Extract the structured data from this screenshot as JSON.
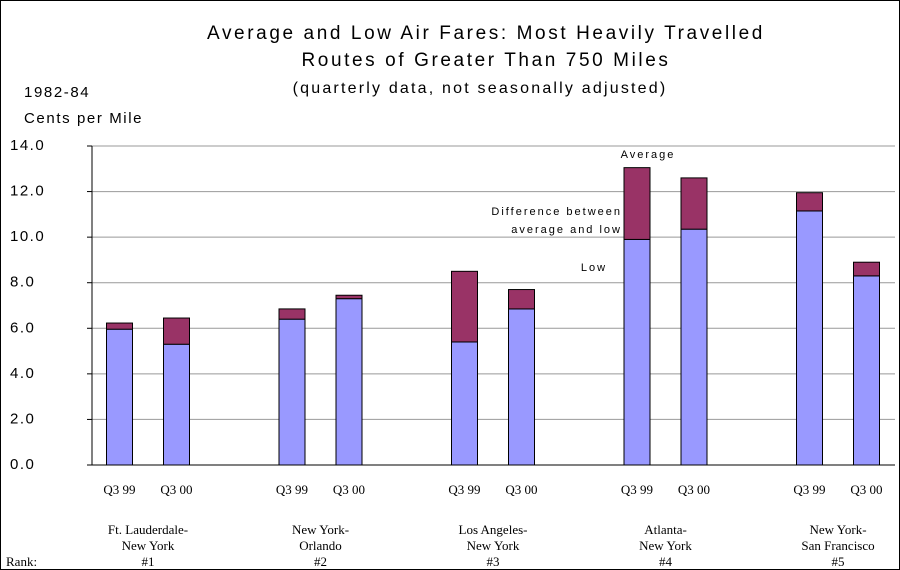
{
  "chart_data": {
    "type": "stacked_bar",
    "title": [
      "Average and Low Air Fares: Most Heavily Travelled",
      "Routes of Greater Than 750 Miles"
    ],
    "subtitle": "(quarterly data, not seasonally adjusted)",
    "base_label": "1982-84",
    "y_label": "Cents per Mile",
    "categories": [
      "Q3 99",
      "Q3 00",
      "Q3 99",
      "Q3 00",
      "Q3 99",
      "Q3 00",
      "Q3 99",
      "Q3 00",
      "Q3 99",
      "Q3 00"
    ],
    "groups": [
      {
        "lines": [
          "Ft. Lauderdale-",
          "New York"
        ],
        "rank": "#1"
      },
      {
        "lines": [
          "New York-",
          "Orlando"
        ],
        "rank": "#2"
      },
      {
        "lines": [
          "Los Angeles-",
          "New York"
        ],
        "rank": "#3"
      },
      {
        "lines": [
          "Atlanta-",
          "New York"
        ],
        "rank": "#4"
      },
      {
        "lines": [
          "New York-",
          "San Francisco"
        ],
        "rank": "#5"
      }
    ],
    "rank_label": "Rank:",
    "series": [
      {
        "color": "#9999ff",
        "values": [
          5.96,
          5.3,
          6.4,
          7.3,
          5.4,
          6.85,
          9.9,
          10.35,
          11.15,
          8.3
        ]
      },
      {
        "color": "#993366",
        "values": [
          0.27,
          1.15,
          0.45,
          0.15,
          3.1,
          0.85,
          3.15,
          2.25,
          0.8,
          0.6
        ]
      }
    ],
    "annotations": [
      "Average",
      "Difference between",
      "average and low",
      "Low"
    ],
    "ylim": [
      0,
      14
    ],
    "yticks": [
      {
        "value": 0,
        "label": "0.0"
      },
      {
        "value": 2,
        "label": "2.0"
      },
      {
        "value": 4,
        "label": "4.0"
      },
      {
        "value": 6,
        "label": "6.0"
      },
      {
        "value": 8,
        "label": "8.0"
      },
      {
        "value": 10,
        "label": "10.0"
      },
      {
        "value": 12,
        "label": "12.0"
      },
      {
        "value": 14,
        "label": "14.0"
      }
    ],
    "grid": true
  }
}
